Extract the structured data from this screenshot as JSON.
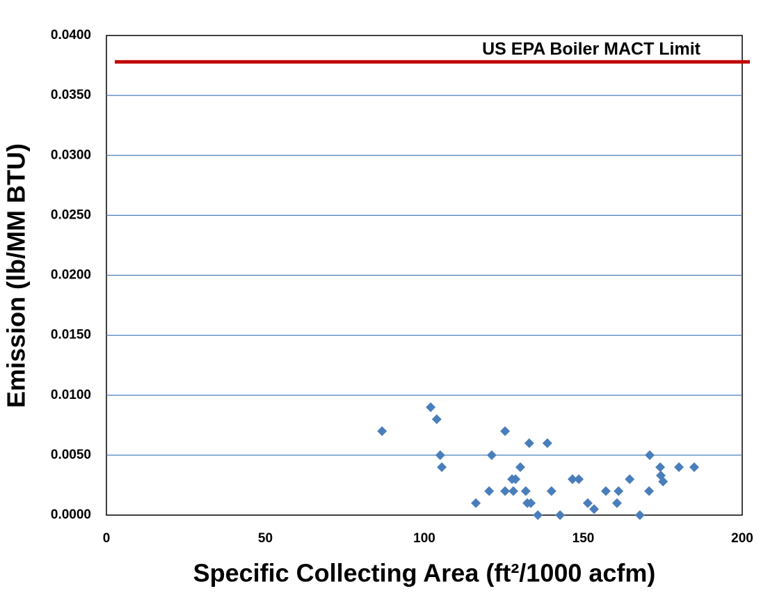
{
  "chart_data": {
    "type": "scatter",
    "x_label": "Specific Collecting Area (ft²/1000 acfm)",
    "y_label": "Emission (lb/MM BTU)",
    "x": [
      86.7,
      102.0,
      103.9,
      105.0,
      105.5,
      116.2,
      120.4,
      121.2,
      125.4,
      125.4,
      127.6,
      128.7,
      128.0,
      130.2,
      131.9,
      132.4,
      133.5,
      133.0,
      135.7,
      138.7,
      140.0,
      142.7,
      146.6,
      148.6,
      151.4,
      153.4,
      157.1,
      160.6,
      161.1,
      164.6,
      167.8,
      170.7,
      170.9,
      174.2,
      174.4,
      175.1,
      180.1,
      184.9
    ],
    "values": [
      0.007,
      0.009,
      0.008,
      0.005,
      0.004,
      0.001,
      0.002,
      0.005,
      0.007,
      0.002,
      0.003,
      0.003,
      0.002,
      0.004,
      0.002,
      0.001,
      0.001,
      0.006,
      0.0,
      0.006,
      0.002,
      0.0,
      0.003,
      0.003,
      0.001,
      0.0005,
      0.002,
      0.001,
      0.002,
      0.003,
      0.0,
      0.002,
      0.005,
      0.004,
      0.0033,
      0.0028,
      0.004,
      0.004
    ],
    "color": "#4a7ebb",
    "xlim": [
      0,
      200
    ],
    "xticks": [
      0,
      50,
      100,
      150,
      200
    ],
    "ylim": [
      0,
      0.04
    ],
    "yticks": [
      {
        "value": 0,
        "label": "0.0000"
      },
      {
        "value": 0.005,
        "label": "0.0050"
      },
      {
        "value": 0.01,
        "label": "0.0100"
      },
      {
        "value": 0.015,
        "label": "0.0150"
      },
      {
        "value": 0.02,
        "label": "0.0200"
      },
      {
        "value": 0.025,
        "label": "0.0250"
      },
      {
        "value": 0.03,
        "label": "0.0300"
      },
      {
        "value": 0.035,
        "label": "0.0350"
      },
      {
        "value": 0.04,
        "label": "0.0400"
      }
    ],
    "grid": true,
    "grid_color": "#4a7ebb",
    "limit_line": {
      "label": "US EPA Boiler MACT Limit",
      "value": 0.0378,
      "color": "#c00000"
    }
  }
}
